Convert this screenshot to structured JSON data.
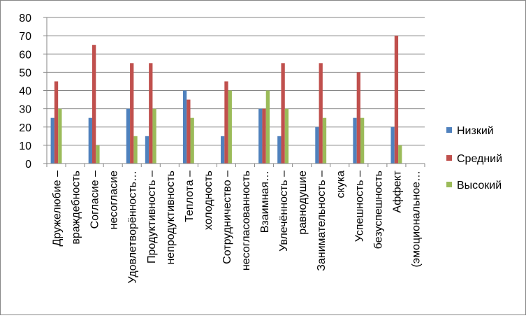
{
  "chart_data": {
    "type": "bar",
    "title": "",
    "xlabel": "",
    "ylabel": "",
    "ylim": [
      0,
      80
    ],
    "yticks": [
      0,
      10,
      20,
      30,
      40,
      50,
      60,
      70,
      80
    ],
    "grid": true,
    "legend_position": "right",
    "categories": [
      "Дружелюбие –",
      "враждебность",
      "Согласие –",
      "несогласие",
      "Удовлетворённость…",
      "Продуктивность –",
      "непродуктивность",
      "Теплота –",
      "холодность",
      "Сотрудничество –",
      "несогласованность",
      "Взаимная…",
      "Увлечённость –",
      "равнодушие",
      "Занимательность –",
      "скука",
      "Успешность –",
      "безуспешность",
      "Аффект",
      "(эмоциональное…"
    ],
    "series": [
      {
        "name": "Низкий",
        "color": "#4f81bd",
        "values": [
          25,
          0,
          25,
          0,
          30,
          15,
          0,
          40,
          0,
          15,
          0,
          30,
          15,
          0,
          20,
          0,
          25,
          0,
          20,
          0
        ]
      },
      {
        "name": "Средний",
        "color": "#c0504d",
        "values": [
          45,
          0,
          65,
          0,
          55,
          55,
          0,
          35,
          0,
          45,
          0,
          30,
          55,
          0,
          55,
          0,
          50,
          0,
          70,
          0
        ]
      },
      {
        "name": "Высокий",
        "color": "#9bbb59",
        "values": [
          30,
          0,
          10,
          0,
          15,
          30,
          0,
          25,
          0,
          40,
          0,
          40,
          30,
          0,
          25,
          0,
          25,
          0,
          10,
          0
        ]
      }
    ]
  }
}
